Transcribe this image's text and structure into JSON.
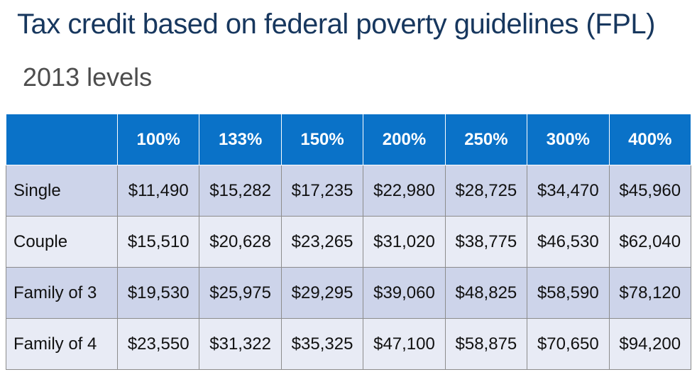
{
  "header": {
    "title": "Tax credit based on federal poverty guidelines (FPL)",
    "subtitle": "2013 levels"
  },
  "table": {
    "columns": [
      "100%",
      "133%",
      "150%",
      "200%",
      "250%",
      "300%",
      "400%"
    ],
    "rows": [
      {
        "label": "Single",
        "cells": [
          "$11,490",
          "$15,282",
          "$17,235",
          "$22,980",
          "$28,725",
          "$34,470",
          "$45,960"
        ]
      },
      {
        "label": "Couple",
        "cells": [
          "$15,510",
          "$20,628",
          "$23,265",
          "$31,020",
          "$38,775",
          "$46,530",
          "$62,040"
        ]
      },
      {
        "label": "Family of 3",
        "cells": [
          "$19,530",
          "$25,975",
          "$29,295",
          "$39,060",
          "$48,825",
          "$58,590",
          "$78,120"
        ]
      },
      {
        "label": "Family of 4",
        "cells": [
          "$23,550",
          "$31,322",
          "$35,325",
          "$47,100",
          "$58,875",
          "$70,650",
          "$94,200"
        ]
      }
    ]
  }
}
